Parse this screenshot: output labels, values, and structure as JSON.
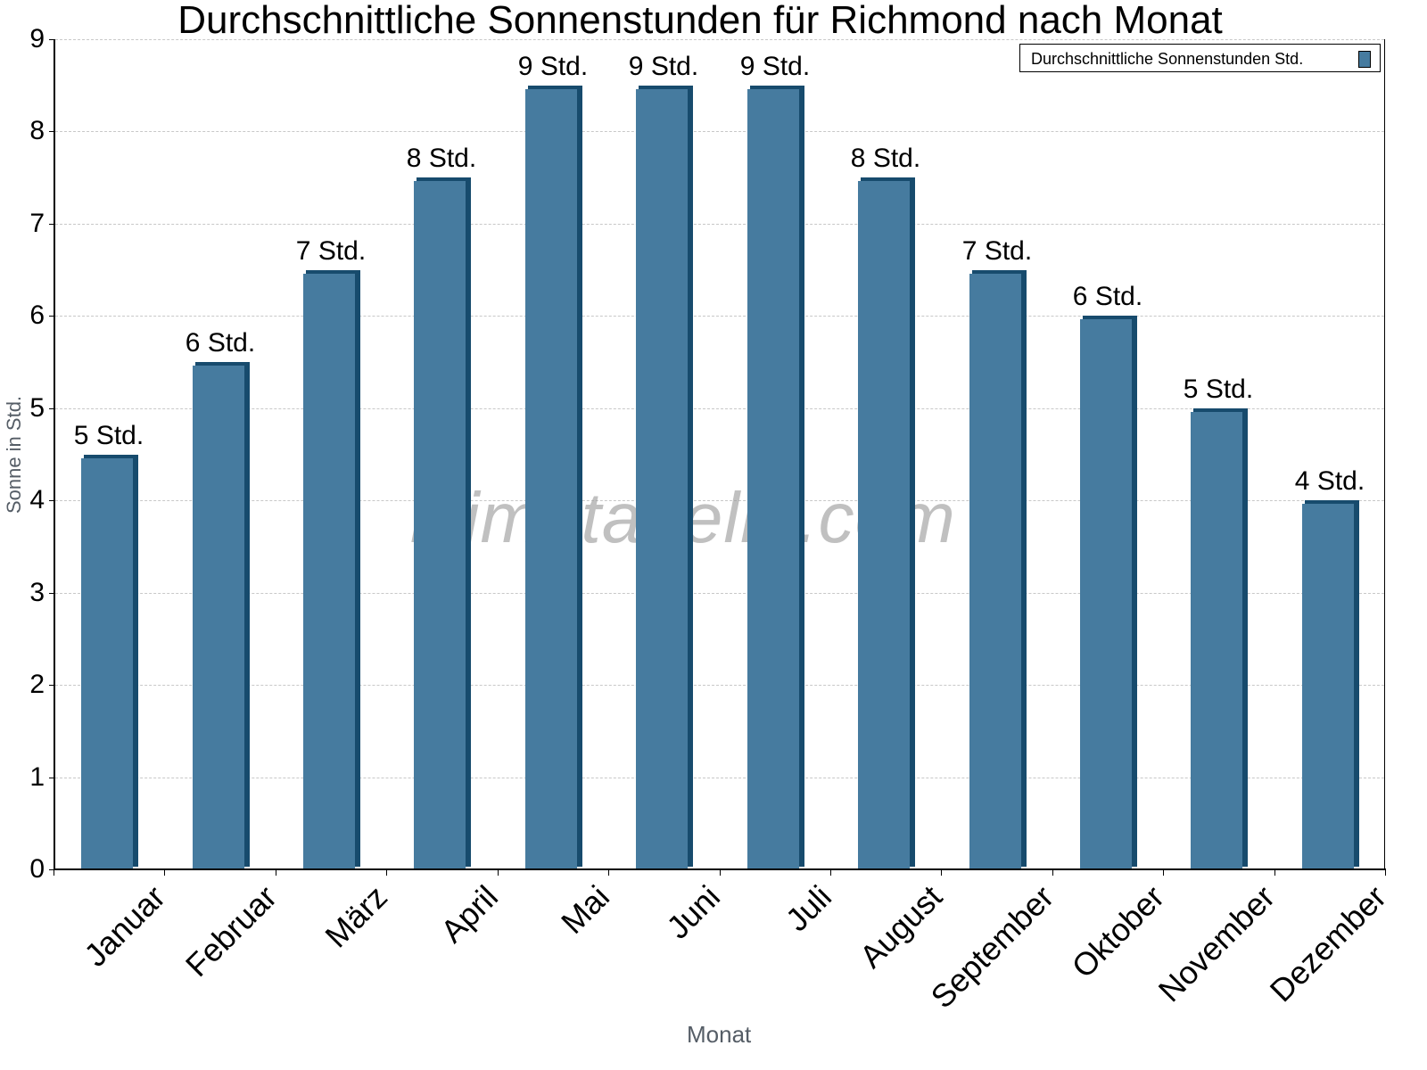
{
  "chart_data": {
    "type": "bar",
    "title": "Durchschnittliche Sonnenstunden für Richmond nach Monat",
    "xlabel": "Monat",
    "ylabel": "Sonne in Std.",
    "ylim": [
      0,
      9
    ],
    "yticks": [
      0,
      1,
      2,
      3,
      4,
      5,
      6,
      7,
      8,
      9
    ],
    "grid": true,
    "legend_position": "top-right",
    "categories": [
      "Januar",
      "Februar",
      "März",
      "April",
      "Mai",
      "Juni",
      "Juli",
      "August",
      "September",
      "Oktober",
      "November",
      "Dezember"
    ],
    "series": [
      {
        "name": "Durchschnittliche Sonnenstunden Std.",
        "color": "#467b9f",
        "values": [
          4.5,
          5.5,
          6.5,
          7.5,
          8.5,
          8.5,
          8.5,
          7.5,
          6.5,
          6.0,
          5.0,
          4.0
        ],
        "data_labels": [
          "5 Std.",
          "6 Std.",
          "7 Std.",
          "8 Std.",
          "9 Std.",
          "9 Std.",
          "9 Std.",
          "8 Std.",
          "7 Std.",
          "6 Std.",
          "5 Std.",
          "4 Std."
        ]
      }
    ],
    "watermark": "klimatabelle.com"
  },
  "colors": {
    "bar_front": "#467b9f",
    "bar_side": "#174b6d",
    "grid": "#c8c8c8",
    "axis_title": "#555d66"
  }
}
